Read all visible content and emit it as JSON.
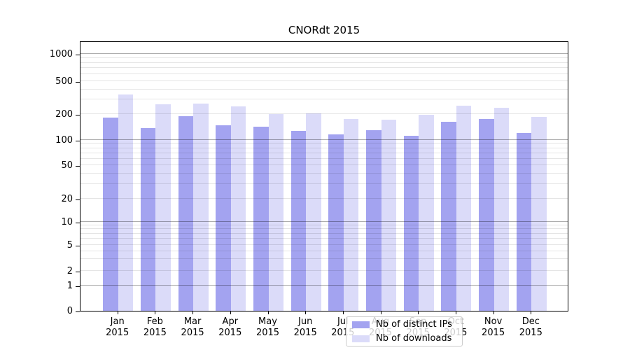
{
  "figure": {
    "background": "#ffffff"
  },
  "chart_data": {
    "type": "bar",
    "title": "CNORdt 2015",
    "categories": [
      "Jan 2015",
      "Feb 2015",
      "Mar 2015",
      "Apr 2015",
      "May 2015",
      "Jun 2015",
      "Jul 2015",
      "Aug 2015",
      "Sep 2015",
      "Oct 2015",
      "Nov 2015",
      "Dec 2015"
    ],
    "series": [
      {
        "name": "Nb of distinct IPs",
        "color": "#a3a3f0",
        "values": [
          181,
          138,
          188,
          147,
          142,
          126,
          116,
          129,
          112,
          164,
          175,
          119
        ]
      },
      {
        "name": "Nb of downloads",
        "color": "#dbdbf9",
        "values": [
          345,
          265,
          270,
          246,
          200,
          205,
          175,
          171,
          195,
          253,
          240,
          185
        ]
      }
    ],
    "yscale": "symlog",
    "y_ticks": [
      0,
      1,
      2,
      5,
      10,
      20,
      50,
      100,
      200,
      500,
      1000
    ],
    "ylim": [
      0,
      1400
    ],
    "xlabel": "",
    "ylabel": "",
    "grid": "on",
    "legend_position": "lower center"
  }
}
